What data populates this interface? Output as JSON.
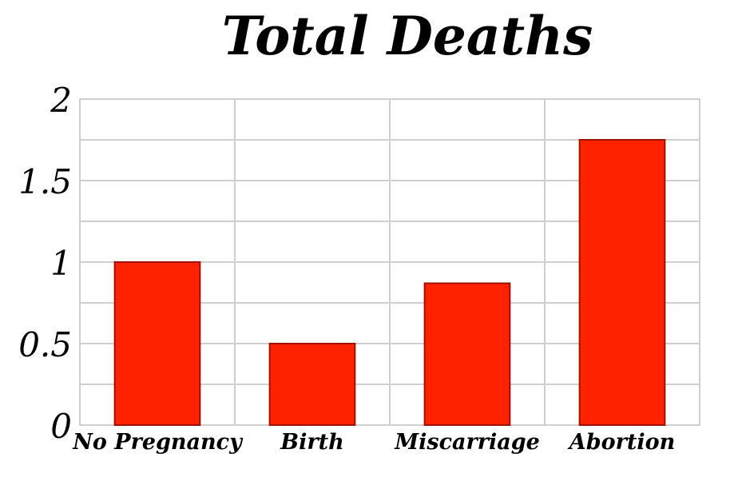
{
  "chart_data": {
    "type": "bar",
    "title": "Total Deaths",
    "xlabel": "",
    "ylabel": "",
    "categories": [
      "No Pregnancy",
      "Birth",
      "Miscarriage",
      "Abortion"
    ],
    "values": [
      1.0,
      0.5,
      0.87,
      1.75
    ],
    "ylim": [
      0,
      2
    ],
    "y_ticks": [
      0,
      0.5,
      1,
      1.5,
      2
    ],
    "y_tick_labels": [
      "0",
      "0.5",
      "1",
      "1.5",
      "2"
    ],
    "grid": true,
    "bar_color": "#ff2200",
    "bar_edge_color": "#a01000",
    "grid_color": "#cfcfcf"
  }
}
